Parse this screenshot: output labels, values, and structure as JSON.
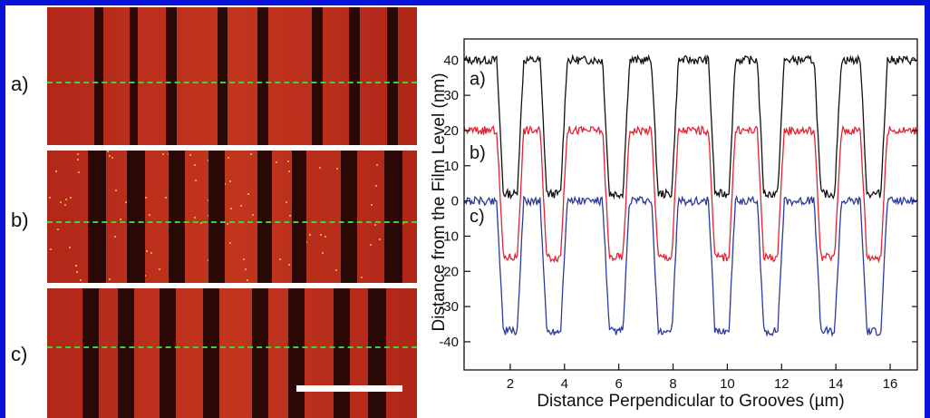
{
  "panels": [
    {
      "label": "a)",
      "grooves": 8,
      "speckle": false
    },
    {
      "label": "b)",
      "grooves": 8,
      "speckle": true
    },
    {
      "label": "c)",
      "grooves": 8,
      "speckle": false
    }
  ],
  "colors": {
    "frame": "#0a14d8",
    "film": "#b8301c",
    "groove": "#2a0806",
    "guide_line": "#3fd23f",
    "scale_bar": "#ffffff"
  },
  "chart_data": {
    "type": "line",
    "title": "",
    "xlabel": "Distance Perpendicular to Grooves (µm)",
    "ylabel": "Distance from the Film Level (nm)",
    "xlim": [
      0.3,
      17.0
    ],
    "ylim": [
      -48,
      46
    ],
    "xticks": [
      2,
      4,
      6,
      8,
      10,
      12,
      14,
      16
    ],
    "yticks": [
      40,
      30,
      20,
      10,
      0,
      -10,
      -20,
      -30,
      -40
    ],
    "grid": false,
    "groove_centers": [
      2.0,
      3.6,
      5.9,
      7.7,
      9.8,
      11.6,
      13.7,
      15.4
    ],
    "groove_width": 0.75,
    "series": [
      {
        "label": "a)",
        "color": "#111111",
        "top": 40,
        "bottom": 2,
        "label_at": [
          0.5,
          33
        ]
      },
      {
        "label": "b)",
        "color": "#e02434",
        "top": 20,
        "bottom": -16,
        "label_at": [
          0.5,
          12
        ]
      },
      {
        "label": "c)",
        "color": "#2b3a9c",
        "top": 0,
        "bottom": -37,
        "label_at": [
          0.5,
          -6
        ]
      }
    ]
  }
}
